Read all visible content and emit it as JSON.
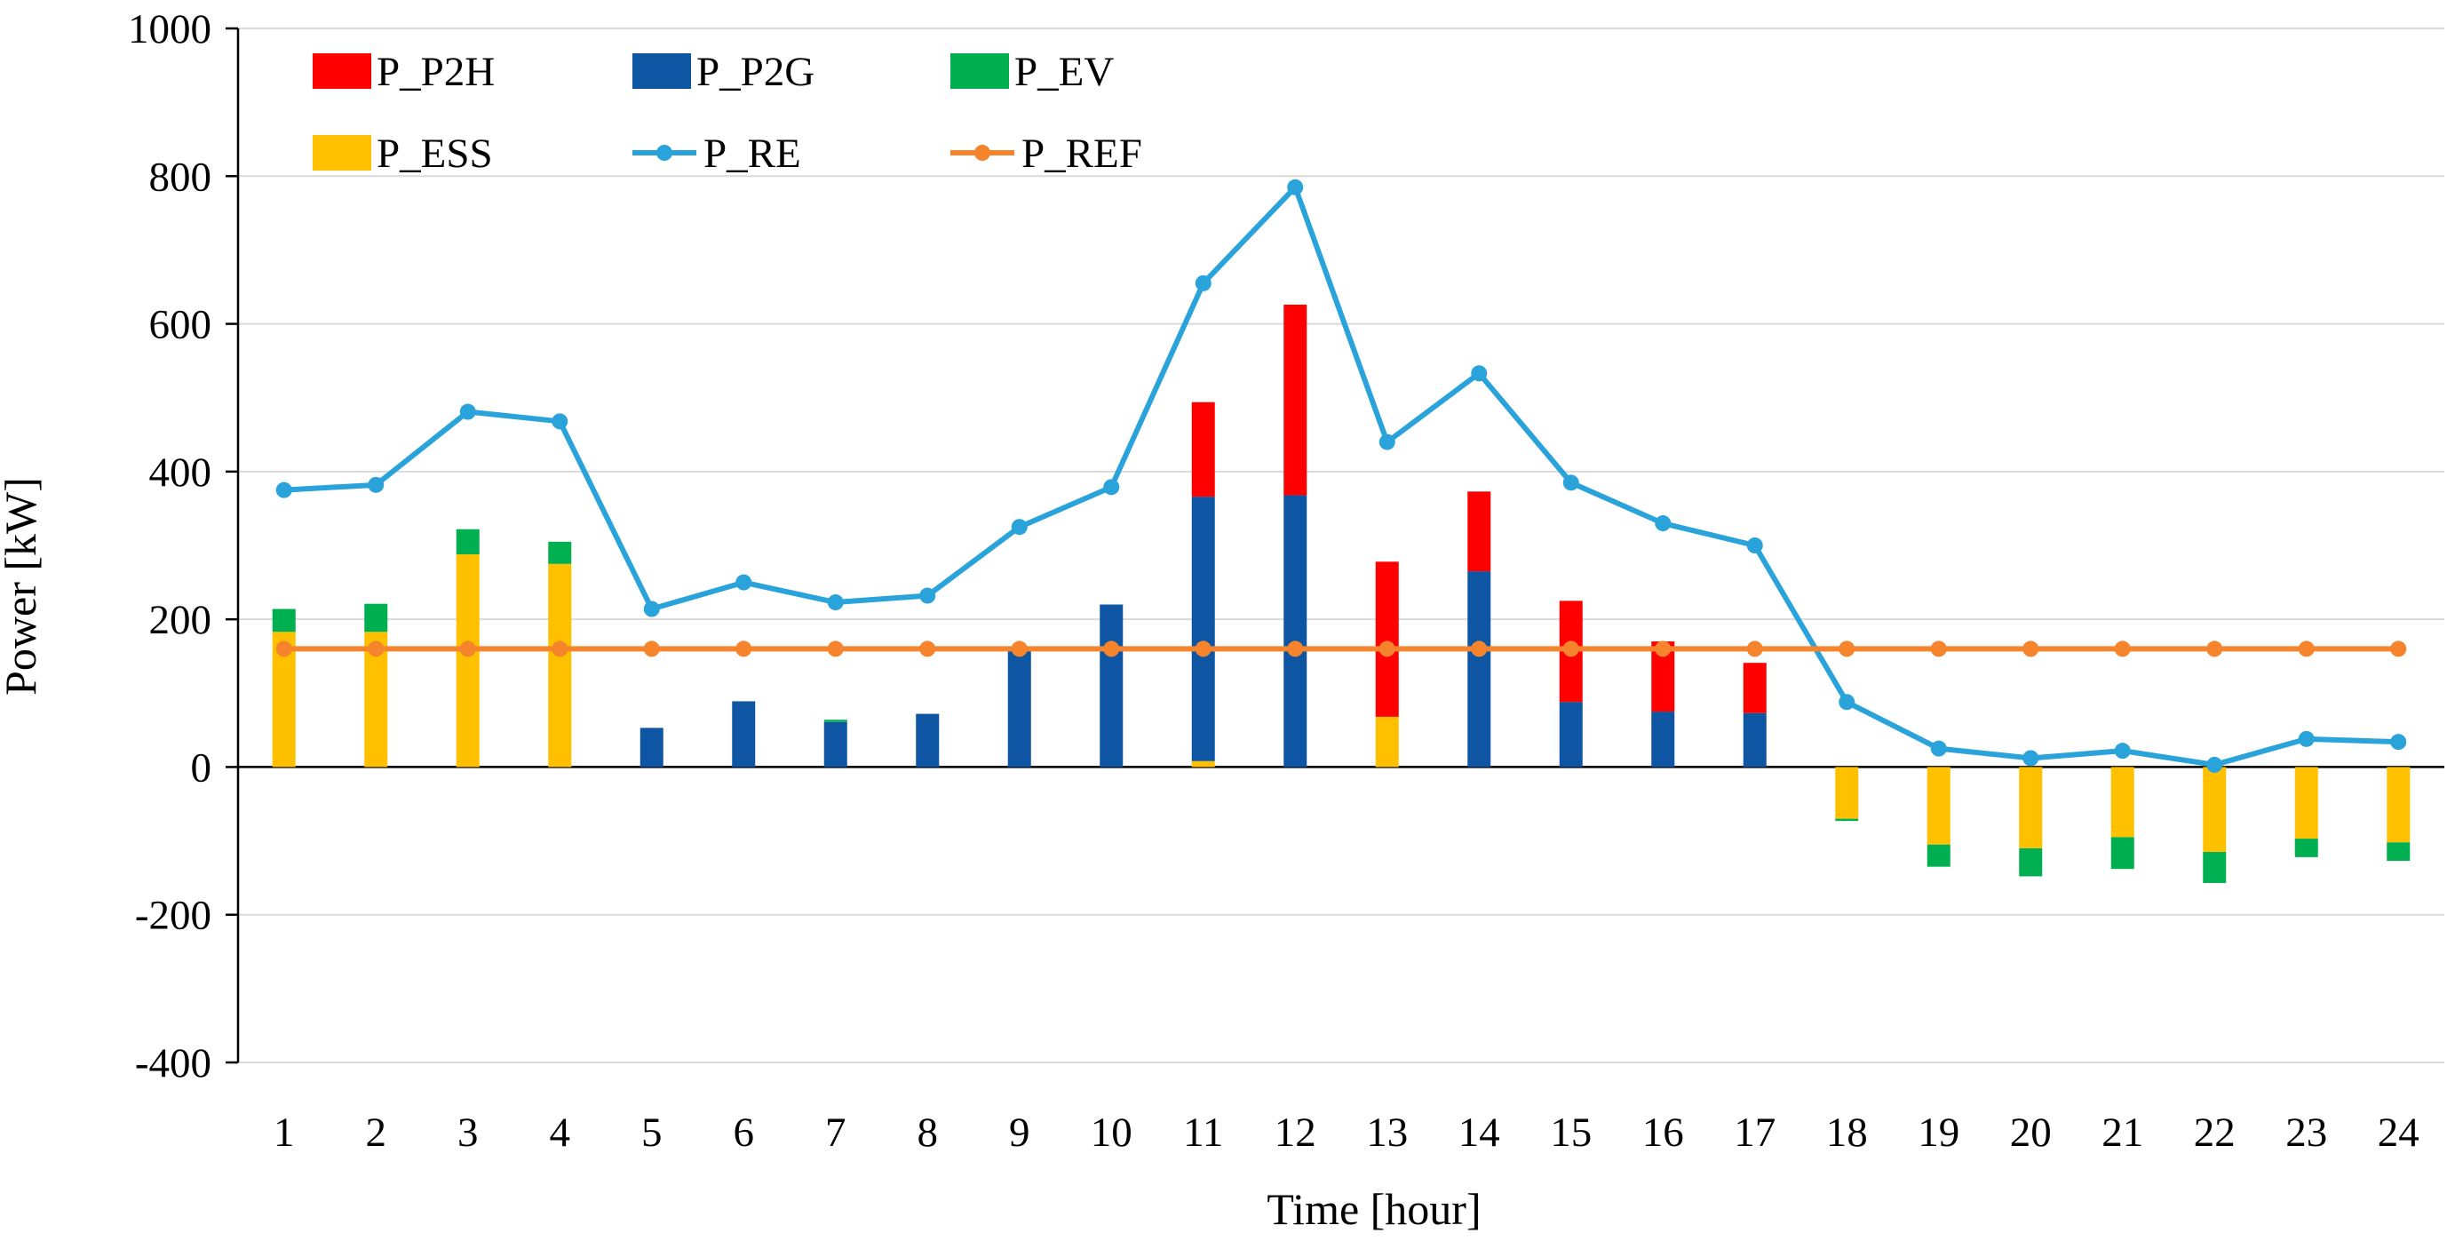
{
  "chart_data": {
    "type": "bar",
    "subtype": "stacked bar with line overlays",
    "title": "",
    "xlabel": "Time [hour]",
    "ylabel": "Power [kW]",
    "ylim": [
      -400,
      1000
    ],
    "yticks": [
      -400,
      -200,
      0,
      200,
      400,
      600,
      800,
      1000
    ],
    "grid": "horizontal",
    "legend_position": "top-left",
    "categories": [
      "1",
      "2",
      "3",
      "4",
      "5",
      "6",
      "7",
      "8",
      "9",
      "10",
      "11",
      "12",
      "13",
      "14",
      "15",
      "16",
      "17",
      "18",
      "19",
      "20",
      "21",
      "22",
      "23",
      "24"
    ],
    "bar_series": [
      {
        "name": "P_ESS",
        "color": "#FFC000",
        "values": [
          183,
          183,
          288,
          275,
          0,
          0,
          0,
          0,
          0,
          0,
          8,
          0,
          68,
          0,
          0,
          0,
          0,
          -70,
          -105,
          -110,
          -95,
          -115,
          -97,
          -102
        ]
      },
      {
        "name": "P_P2G",
        "color": "#0E56A3",
        "values": [
          0,
          0,
          0,
          0,
          53,
          89,
          61,
          72,
          162,
          220,
          358,
          368,
          0,
          265,
          88,
          75,
          73,
          0,
          0,
          0,
          0,
          0,
          0,
          0
        ]
      },
      {
        "name": "P_P2H",
        "color": "#FF0000",
        "values": [
          0,
          0,
          0,
          0,
          0,
          0,
          0,
          0,
          0,
          0,
          128,
          258,
          210,
          108,
          137,
          95,
          68,
          0,
          0,
          0,
          0,
          0,
          0,
          0
        ]
      },
      {
        "name": "P_EV",
        "color": "#00B050",
        "values": [
          31,
          38,
          34,
          30,
          0,
          0,
          3,
          0,
          0,
          0,
          0,
          0,
          0,
          0,
          0,
          0,
          0,
          -3,
          -30,
          -38,
          -43,
          -42,
          -25,
          -25
        ]
      }
    ],
    "line_series": [
      {
        "name": "P_RE",
        "color": "#29A3DA",
        "values": [
          375,
          382,
          481,
          468,
          214,
          250,
          223,
          232,
          325,
          379,
          655,
          785,
          440,
          533,
          385,
          330,
          300,
          88,
          25,
          12,
          22,
          3,
          38,
          34
        ]
      },
      {
        "name": "P_REF",
        "color": "#F5842C",
        "values": [
          160,
          160,
          160,
          160,
          160,
          160,
          160,
          160,
          160,
          160,
          160,
          160,
          160,
          160,
          160,
          160,
          160,
          160,
          160,
          160,
          160,
          160,
          160,
          160
        ]
      }
    ],
    "legend": [
      {
        "label": "P_P2H",
        "kind": "bar",
        "color": "#FF0000"
      },
      {
        "label": "P_P2G",
        "kind": "bar",
        "color": "#0E56A3"
      },
      {
        "label": "P_EV",
        "kind": "bar",
        "color": "#00B050"
      },
      {
        "label": "P_ESS",
        "kind": "bar",
        "color": "#FFC000"
      },
      {
        "label": "P_RE",
        "kind": "line",
        "color": "#29A3DA"
      },
      {
        "label": "P_REF",
        "kind": "line",
        "color": "#F5842C"
      }
    ]
  }
}
